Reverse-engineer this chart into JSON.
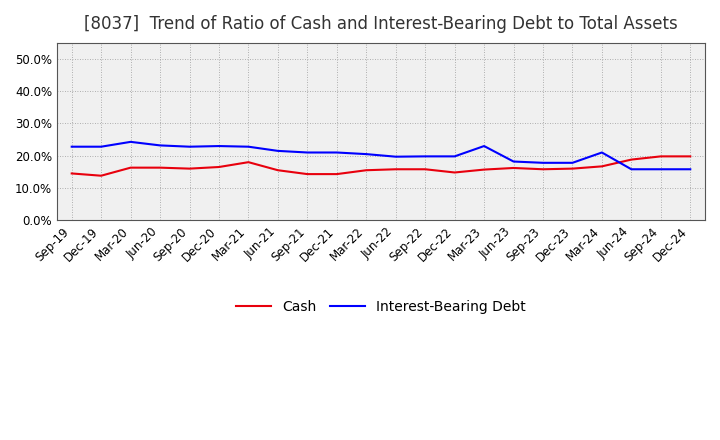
{
  "title": "[8037]  Trend of Ratio of Cash and Interest-Bearing Debt to Total Assets",
  "x_labels": [
    "Sep-19",
    "Dec-19",
    "Mar-20",
    "Jun-20",
    "Sep-20",
    "Dec-20",
    "Mar-21",
    "Jun-21",
    "Sep-21",
    "Dec-21",
    "Mar-22",
    "Jun-22",
    "Sep-22",
    "Dec-22",
    "Mar-23",
    "Jun-23",
    "Sep-23",
    "Dec-23",
    "Mar-24",
    "Jun-24",
    "Sep-24",
    "Dec-24"
  ],
  "cash": [
    0.145,
    0.138,
    0.163,
    0.163,
    0.16,
    0.165,
    0.18,
    0.155,
    0.143,
    0.143,
    0.155,
    0.158,
    0.158,
    0.148,
    0.157,
    0.162,
    0.158,
    0.16,
    0.167,
    0.188,
    0.198,
    0.198
  ],
  "interest_bearing_debt": [
    0.228,
    0.228,
    0.243,
    0.232,
    0.228,
    0.23,
    0.228,
    0.215,
    0.21,
    0.21,
    0.205,
    0.197,
    0.198,
    0.198,
    0.23,
    0.182,
    0.178,
    0.178,
    0.21,
    0.158,
    0.158,
    0.158
  ],
  "cash_color": "#e8000d",
  "debt_color": "#0000ff",
  "background_color": "#ffffff",
  "plot_bg_color": "#f0f0f0",
  "grid_color": "#999999",
  "ylim": [
    0.0,
    0.55
  ],
  "yticks": [
    0.0,
    0.1,
    0.2,
    0.3,
    0.4,
    0.5
  ],
  "legend_cash": "Cash",
  "legend_debt": "Interest-Bearing Debt",
  "title_fontsize": 12,
  "tick_fontsize": 8.5,
  "legend_fontsize": 10
}
